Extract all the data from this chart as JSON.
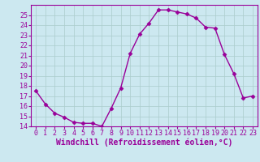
{
  "x": [
    0,
    1,
    2,
    3,
    4,
    5,
    6,
    7,
    8,
    9,
    10,
    11,
    12,
    13,
    14,
    15,
    16,
    17,
    18,
    19,
    20,
    21,
    22,
    23
  ],
  "y": [
    17.5,
    16.2,
    15.3,
    14.9,
    14.4,
    14.3,
    14.3,
    14.0,
    15.8,
    17.8,
    21.2,
    23.1,
    24.2,
    25.5,
    25.5,
    25.3,
    25.1,
    24.7,
    23.8,
    23.7,
    21.1,
    19.2,
    16.8,
    17.0
  ],
  "line_color": "#990099",
  "marker": "D",
  "marker_size": 2.5,
  "bg_color": "#cce8f0",
  "grid_color": "#aacccc",
  "xlabel": "Windchill (Refroidissement éolien,°C)",
  "xlabel_color": "#990099",
  "ylim": [
    14,
    26
  ],
  "xlim": [
    -0.5,
    23.5
  ],
  "yticks": [
    14,
    15,
    16,
    17,
    18,
    19,
    20,
    21,
    22,
    23,
    24,
    25
  ],
  "xticks": [
    0,
    1,
    2,
    3,
    4,
    5,
    6,
    7,
    8,
    9,
    10,
    11,
    12,
    13,
    14,
    15,
    16,
    17,
    18,
    19,
    20,
    21,
    22,
    23
  ],
  "tick_color": "#990099",
  "tick_fontsize": 6.0,
  "xlabel_fontsize": 7.0,
  "spine_color": "#990099",
  "linewidth": 1.0
}
